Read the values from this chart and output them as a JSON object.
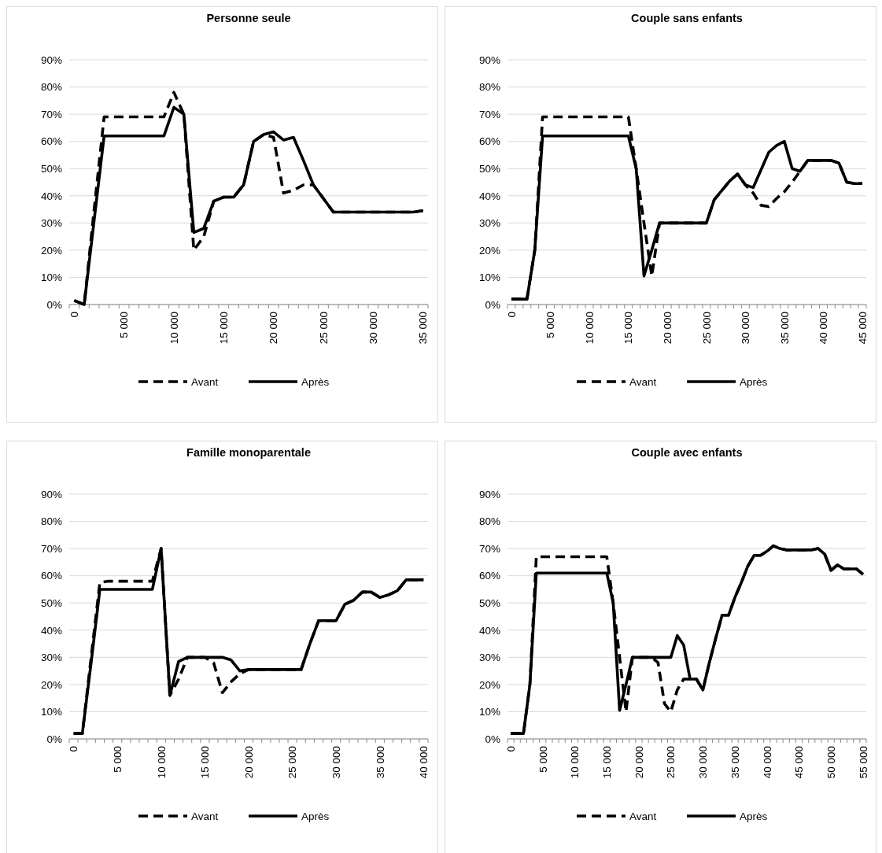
{
  "chart_data": [
    {
      "type": "line",
      "title": "Personne seule",
      "categories": [
        "0",
        null,
        null,
        null,
        null,
        "5 000",
        null,
        null,
        null,
        null,
        "10 000",
        null,
        null,
        null,
        null,
        "15 000",
        null,
        null,
        null,
        null,
        "20 000",
        null,
        null,
        null,
        null,
        "25 000",
        null,
        null,
        null,
        null,
        "30 000",
        null,
        null,
        null,
        null,
        "35 000"
      ],
      "series": [
        {
          "name": "Avant",
          "color": "#000000",
          "line_style": "dashed",
          "values": [
            1.5,
            0,
            35,
            69,
            69,
            69,
            69,
            69,
            69,
            69,
            78,
            70,
            20,
            25,
            38,
            39.5,
            39.5,
            44,
            60,
            62.5,
            61.5,
            41,
            42,
            44,
            44,
            39,
            34,
            34,
            34,
            34,
            34,
            34,
            34,
            34,
            34,
            34.5
          ]
        },
        {
          "name": "Après",
          "color": "#000000",
          "line_style": "solid",
          "values": [
            1.5,
            0,
            31,
            62,
            62,
            62,
            62,
            62,
            62,
            62,
            72.5,
            70,
            26.5,
            28,
            38,
            39.5,
            39.5,
            44,
            60,
            62.5,
            63.5,
            60.5,
            61.5,
            53,
            44,
            39,
            34,
            34,
            34,
            34,
            34,
            34,
            34,
            34,
            34,
            34.5
          ]
        }
      ],
      "ylim": [
        0,
        90
      ],
      "yticks": [
        {
          "value": 0,
          "label": "0%"
        },
        {
          "value": 10,
          "label": "10%"
        },
        {
          "value": 20,
          "label": "20%"
        },
        {
          "value": 30,
          "label": "30%"
        },
        {
          "value": 40,
          "label": "40%"
        },
        {
          "value": 50,
          "label": "50%"
        },
        {
          "value": 60,
          "label": "60%"
        },
        {
          "value": 70,
          "label": "70%"
        },
        {
          "value": 80,
          "label": "80%"
        },
        {
          "value": 90,
          "label": "90%"
        }
      ],
      "grid": "y",
      "legend": "bottom"
    },
    {
      "type": "line",
      "title": "Couple sans enfants",
      "categories": [
        "0",
        null,
        null,
        null,
        null,
        "5 000",
        null,
        null,
        null,
        null,
        "10 000",
        null,
        null,
        null,
        null,
        "15 000",
        null,
        null,
        null,
        null,
        "20 000",
        null,
        null,
        null,
        null,
        "25 000",
        null,
        null,
        null,
        null,
        "30 000",
        null,
        null,
        null,
        null,
        "35 000",
        null,
        null,
        null,
        null,
        "40 000",
        null,
        null,
        null,
        null,
        "45 000"
      ],
      "series": [
        {
          "name": "Avant",
          "color": "#000000",
          "line_style": "dashed",
          "values": [
            2,
            2,
            2,
            20,
            69,
            69,
            69,
            69,
            69,
            69,
            69,
            69,
            69,
            69,
            69,
            69,
            50,
            30,
            10.5,
            30,
            30,
            30,
            30,
            30,
            30,
            30,
            38.5,
            42,
            45.5,
            48,
            44,
            41,
            36.5,
            36,
            39,
            41.5,
            45,
            49,
            53,
            53,
            53,
            53,
            52,
            45,
            44.5,
            44.5
          ]
        },
        {
          "name": "Après",
          "color": "#000000",
          "line_style": "solid",
          "values": [
            2,
            2,
            2,
            20,
            62,
            62,
            62,
            62,
            62,
            62,
            62,
            62,
            62,
            62,
            62,
            62,
            50,
            10.5,
            20,
            30,
            30,
            30,
            30,
            30,
            30,
            30,
            38.5,
            42,
            45.5,
            48,
            44,
            43,
            49.5,
            56,
            58.5,
            60,
            50,
            49,
            53,
            53,
            53,
            53,
            52,
            45,
            44.5,
            44.5
          ]
        }
      ],
      "ylim": [
        0,
        90
      ],
      "yticks": [
        {
          "value": 0,
          "label": "0%"
        },
        {
          "value": 10,
          "label": "10%"
        },
        {
          "value": 20,
          "label": "20%"
        },
        {
          "value": 30,
          "label": "30%"
        },
        {
          "value": 40,
          "label": "40%"
        },
        {
          "value": 50,
          "label": "50%"
        },
        {
          "value": 60,
          "label": "60%"
        },
        {
          "value": 70,
          "label": "70%"
        },
        {
          "value": 80,
          "label": "80%"
        },
        {
          "value": 90,
          "label": "90%"
        }
      ],
      "grid": "y",
      "legend": "bottom"
    },
    {
      "type": "line",
      "title": "Famille monoparentale",
      "categories": [
        "0",
        null,
        null,
        null,
        null,
        "5 000",
        null,
        null,
        null,
        null,
        "10 000",
        null,
        null,
        null,
        null,
        "15 000",
        null,
        null,
        null,
        null,
        "20 000",
        null,
        null,
        null,
        null,
        "25 000",
        null,
        null,
        null,
        null,
        "30 000",
        null,
        null,
        null,
        null,
        "35 000",
        null,
        null,
        null,
        null,
        "40 000"
      ],
      "series": [
        {
          "name": "Avant",
          "color": "#000000",
          "line_style": "dashed",
          "values": [
            2,
            2,
            30,
            57.5,
            58,
            58,
            58,
            58,
            58,
            58,
            70,
            16,
            22,
            30,
            30,
            30,
            28,
            17,
            21,
            24,
            25.5,
            25.5,
            25.5,
            25.5,
            25.5,
            25.5,
            25.5,
            35,
            43.5,
            43.5,
            43.5,
            49.5,
            51,
            54,
            54,
            52,
            53,
            54.5,
            58.5,
            58.5,
            58.5
          ]
        },
        {
          "name": "Après",
          "color": "#000000",
          "line_style": "solid",
          "values": [
            2,
            2,
            28,
            55,
            55,
            55,
            55,
            55,
            55,
            55,
            70,
            16,
            28.5,
            30,
            30,
            30,
            30,
            30,
            29,
            25,
            25.5,
            25.5,
            25.5,
            25.5,
            25.5,
            25.5,
            25.5,
            35,
            43.5,
            43.5,
            43.5,
            49.5,
            51,
            54,
            54,
            52,
            53,
            54.5,
            58.5,
            58.5,
            58.5
          ]
        }
      ],
      "ylim": [
        0,
        90
      ],
      "yticks": [
        {
          "value": 0,
          "label": "0%"
        },
        {
          "value": 10,
          "label": "10%"
        },
        {
          "value": 20,
          "label": "20%"
        },
        {
          "value": 30,
          "label": "30%"
        },
        {
          "value": 40,
          "label": "40%"
        },
        {
          "value": 50,
          "label": "50%"
        },
        {
          "value": 60,
          "label": "60%"
        },
        {
          "value": 70,
          "label": "70%"
        },
        {
          "value": 80,
          "label": "80%"
        },
        {
          "value": 90,
          "label": "90%"
        }
      ],
      "grid": "y",
      "legend": "bottom"
    },
    {
      "type": "line",
      "title": "Couple avec enfants",
      "categories": [
        "0",
        null,
        null,
        null,
        null,
        "5 000",
        null,
        null,
        null,
        null,
        "10 000",
        null,
        null,
        null,
        null,
        "15 000",
        null,
        null,
        null,
        null,
        "20 000",
        null,
        null,
        null,
        null,
        "25 000",
        null,
        null,
        null,
        null,
        "30 000",
        null,
        null,
        null,
        null,
        "35 000",
        null,
        null,
        null,
        null,
        "40 000",
        null,
        null,
        null,
        null,
        "45 000",
        null,
        null,
        null,
        null,
        "50 000",
        null,
        null,
        null,
        null,
        "55 000"
      ],
      "series": [
        {
          "name": "Avant",
          "color": "#000000",
          "line_style": "dashed",
          "values": [
            2,
            2,
            2,
            20,
            67,
            67,
            67,
            67,
            67,
            67,
            67,
            67,
            67,
            67,
            67,
            67,
            50,
            30,
            10,
            30,
            30,
            30,
            30,
            28,
            13,
            10,
            18,
            22,
            22,
            22,
            18,
            28,
            37,
            45.5,
            45.5,
            52,
            57.5,
            63.5,
            67.5,
            67.5,
            69,
            71,
            70,
            69.5,
            69.5,
            69.5,
            69.5,
            69.5,
            70,
            68,
            62,
            64,
            62.5,
            62.5,
            62.5,
            60.5
          ]
        },
        {
          "name": "Après",
          "color": "#000000",
          "line_style": "solid",
          "values": [
            2,
            2,
            2,
            20,
            61,
            61,
            61,
            61,
            61,
            61,
            61,
            61,
            61,
            61,
            61,
            61,
            50,
            10.5,
            20,
            30,
            30,
            30,
            30,
            30,
            30,
            30,
            38,
            34.5,
            22,
            22,
            18,
            28,
            37,
            45.5,
            45.5,
            52,
            57.5,
            63.5,
            67.5,
            67.5,
            69,
            71,
            70,
            69.5,
            69.5,
            69.5,
            69.5,
            69.5,
            70,
            68,
            62,
            64,
            62.5,
            62.5,
            62.5,
            60.5
          ]
        }
      ],
      "ylim": [
        0,
        90
      ],
      "yticks": [
        {
          "value": 0,
          "label": "0%"
        },
        {
          "value": 10,
          "label": "10%"
        },
        {
          "value": 20,
          "label": "20%"
        },
        {
          "value": 30,
          "label": "30%"
        },
        {
          "value": 40,
          "label": "40%"
        },
        {
          "value": 50,
          "label": "50%"
        },
        {
          "value": 60,
          "label": "60%"
        },
        {
          "value": 70,
          "label": "70%"
        },
        {
          "value": 80,
          "label": "80%"
        },
        {
          "value": 90,
          "label": "90%"
        }
      ],
      "grid": "y",
      "legend": "bottom"
    }
  ]
}
